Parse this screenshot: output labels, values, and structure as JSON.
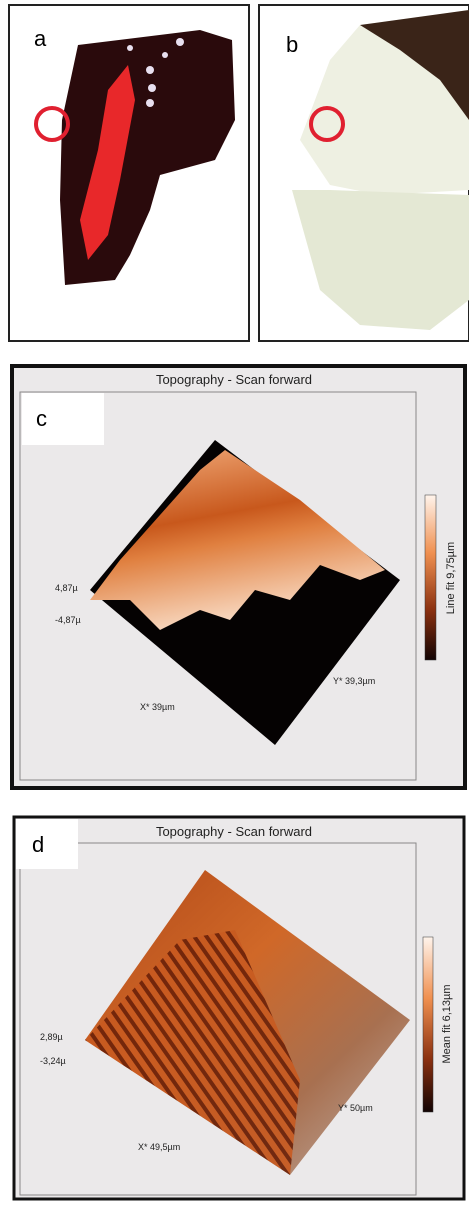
{
  "panels": [
    {
      "label": "a"
    },
    {
      "label": "b"
    },
    {
      "label": "c",
      "title": "Topography - Scan forward",
      "z_max": "4,87µ",
      "z_min": "-4,87µ",
      "x_axis": "X* 39µm",
      "y_axis": "Y* 39,3µm",
      "colorbar": "Line fit 9,75µm"
    },
    {
      "label": "d",
      "title": "Topography - Scan forward",
      "z_max": "2,89µ",
      "z_min": "-3,24µ",
      "x_axis": "X* 49,5µm",
      "y_axis": "Y* 50µm",
      "colorbar": "Mean fit 6,13µm"
    }
  ]
}
